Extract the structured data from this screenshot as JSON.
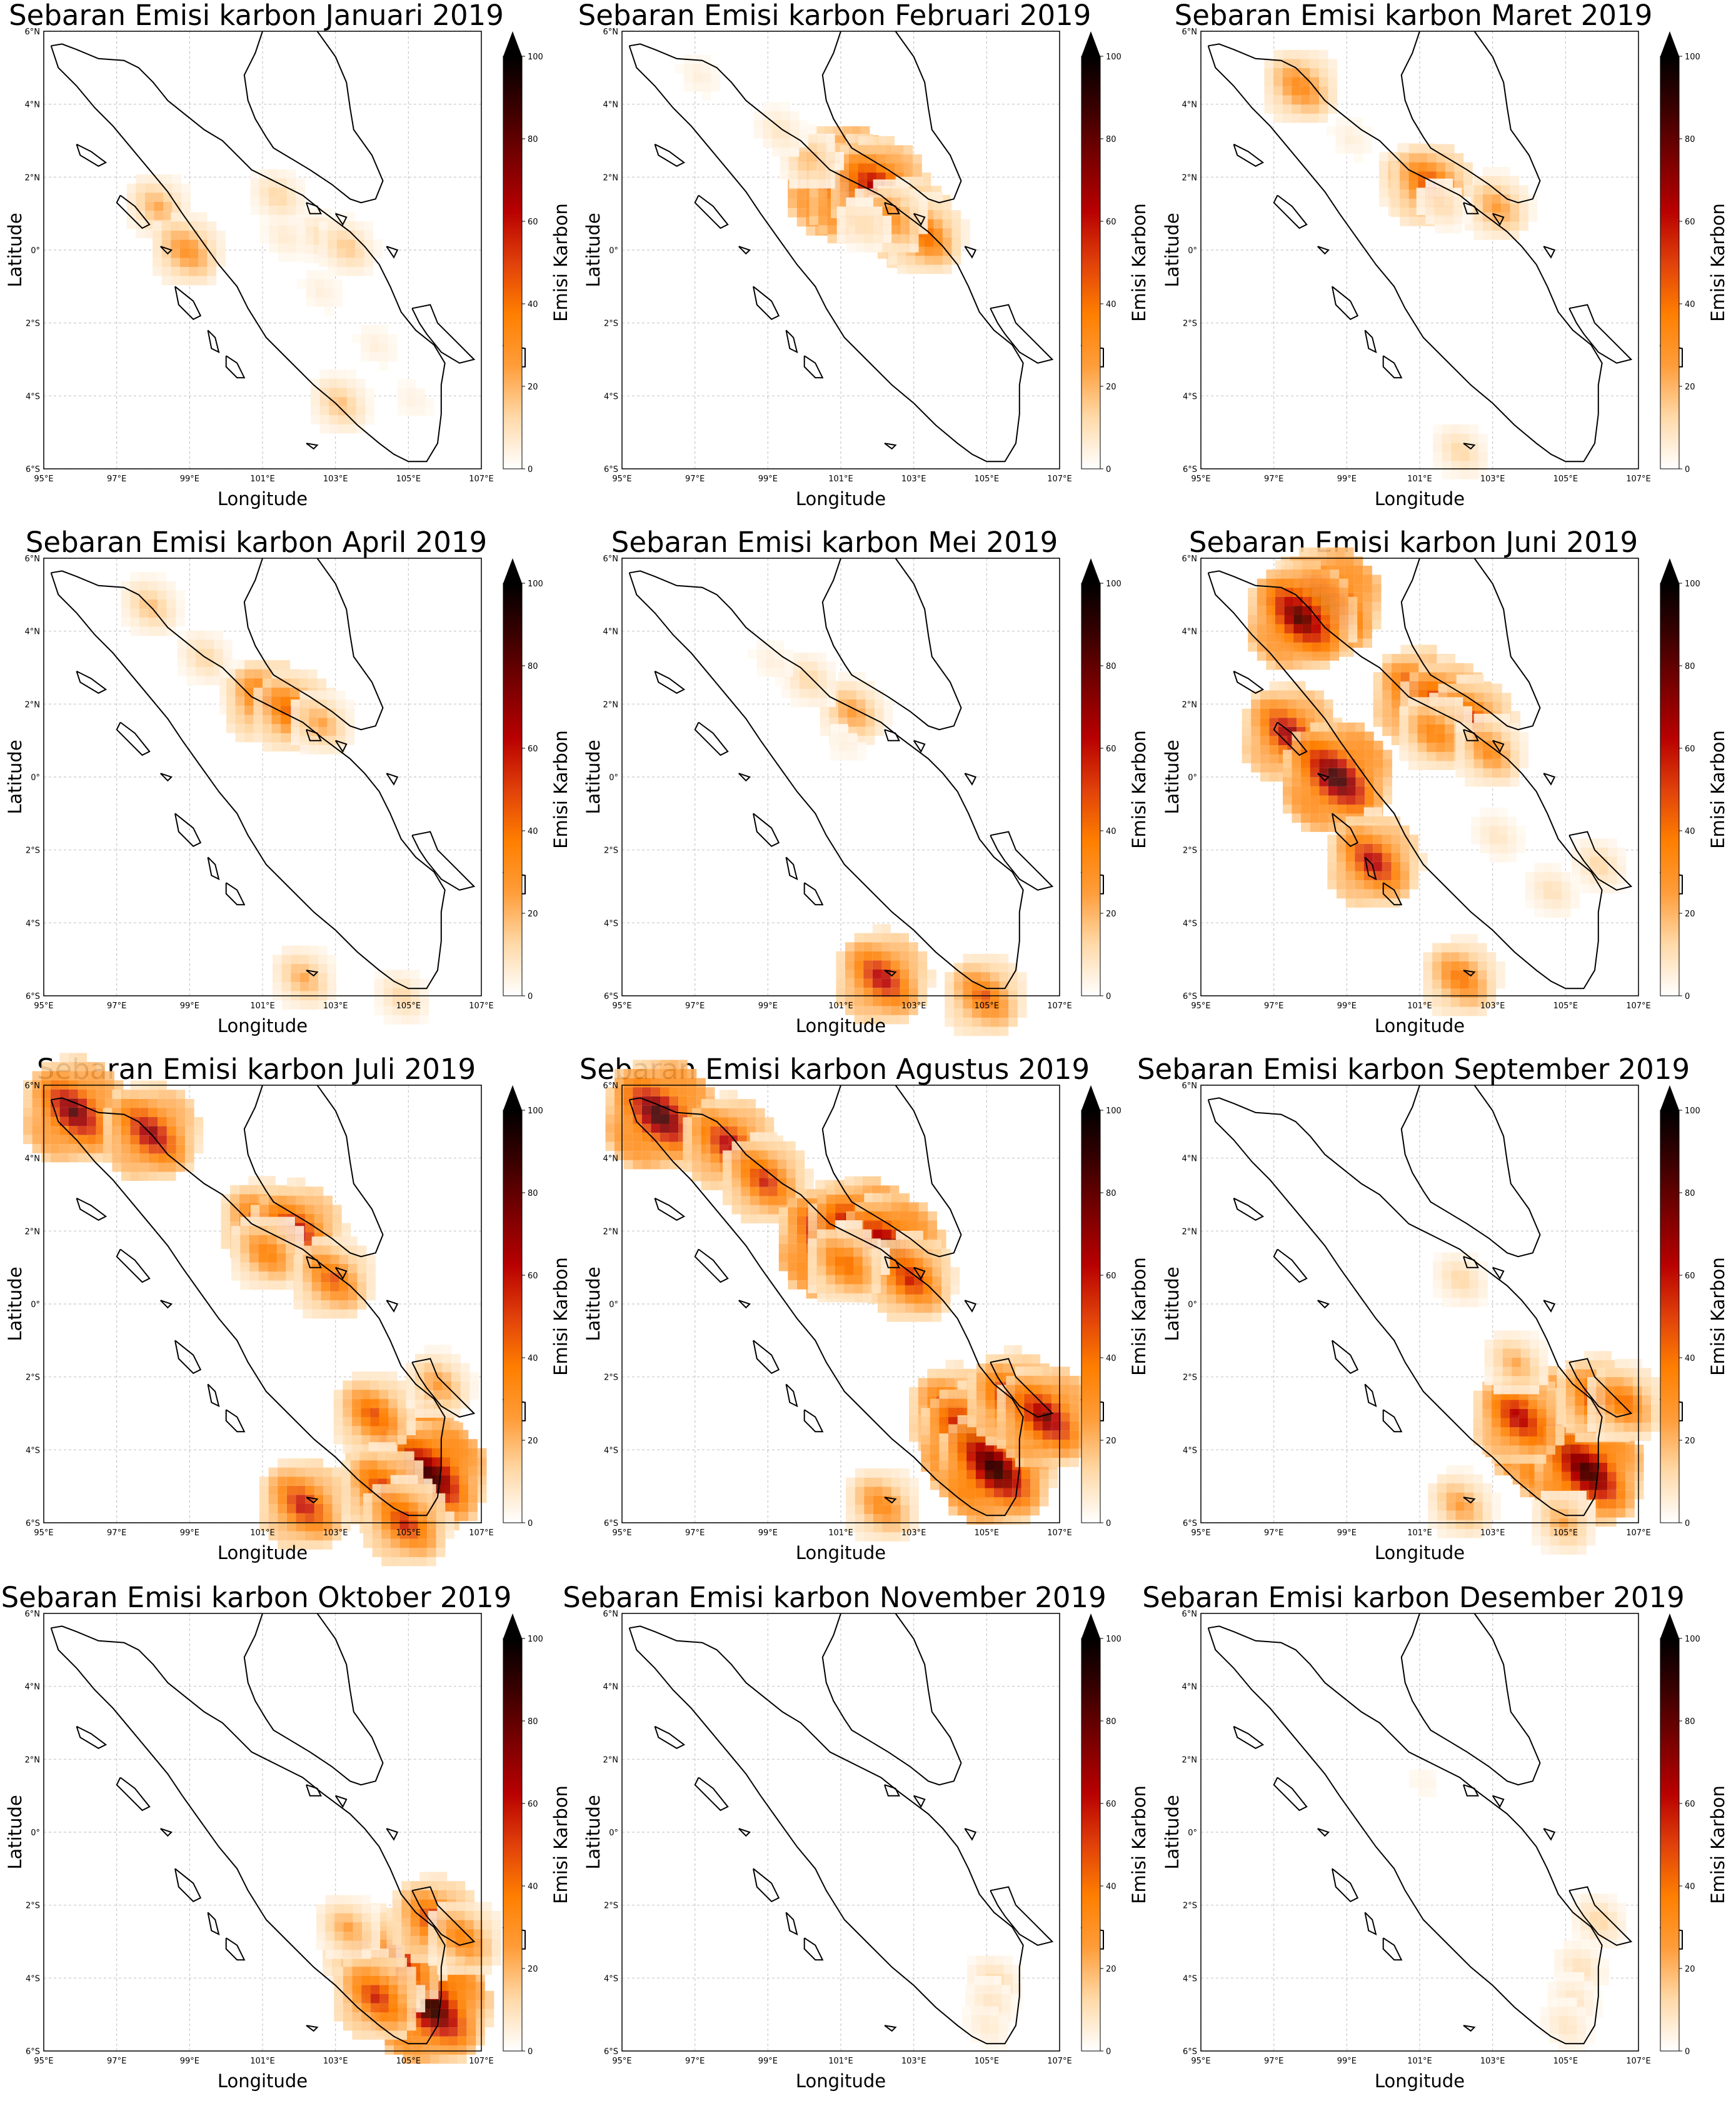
{
  "figure": {
    "colorbar_label": "Emisi Karbon",
    "xlabel": "Longitude",
    "ylabel": "Latitude",
    "colorbar_ticks": [
      "0",
      "20",
      "40",
      "60",
      "80",
      "100"
    ],
    "lon_ticks": [
      "95°E",
      "97°E",
      "99°E",
      "101°E",
      "103°E",
      "105°E",
      "107°E"
    ],
    "lat_ticks": [
      "6°N",
      "4°N",
      "2°N",
      "0°",
      "2°S",
      "4°S",
      "6°S"
    ],
    "colormap": [
      "#ffffff",
      "#ffd9a8",
      "#ff9d3a",
      "#ff7f00",
      "#e0400a",
      "#b80000",
      "#7a0000",
      "#3a0000",
      "#000000"
    ]
  },
  "chart_data": [
    {
      "type": "heatmap",
      "title": "Sebaran Emisi karbon Januari 2019",
      "xlabel": "Longitude",
      "ylabel": "Latitude",
      "colorbar_label": "Emisi Karbon",
      "value_range": [
        0,
        100
      ],
      "xlim": [
        "95°E",
        "107°E"
      ],
      "ylim": [
        "6°S",
        "6°N"
      ],
      "hotspots": [
        {
          "lon": 98.0,
          "lat": 1.3,
          "value": 25
        },
        {
          "lon": 98.8,
          "lat": 0.1,
          "value": 35
        },
        {
          "lon": 101.3,
          "lat": 1.6,
          "value": 15
        },
        {
          "lon": 102.5,
          "lat": 0.5,
          "value": 12
        },
        {
          "lon": 103.2,
          "lat": 0.2,
          "value": 18
        },
        {
          "lon": 101.5,
          "lat": 0.5,
          "value": 8
        },
        {
          "lon": 102.5,
          "lat": -1.0,
          "value": 6
        },
        {
          "lon": 104.0,
          "lat": -2.5,
          "value": 6
        },
        {
          "lon": 103.0,
          "lat": -4.1,
          "value": 20
        },
        {
          "lon": 105.0,
          "lat": -4.0,
          "value": 5
        }
      ]
    },
    {
      "type": "heatmap",
      "title": "Sebaran Emisi karbon Februari 2019",
      "xlabel": "Longitude",
      "ylabel": "Latitude",
      "colorbar_label": "Emisi Karbon",
      "value_range": [
        0,
        100
      ],
      "xlim": [
        "95°E",
        "107°E"
      ],
      "ylim": [
        "6°S",
        "6°N"
      ],
      "hotspots": [
        {
          "lon": 100.9,
          "lat": 2.0,
          "value": 95
        },
        {
          "lon": 101.4,
          "lat": 1.7,
          "value": 85
        },
        {
          "lon": 101.9,
          "lat": 1.8,
          "value": 75
        },
        {
          "lon": 102.8,
          "lat": 0.8,
          "value": 60
        },
        {
          "lon": 103.2,
          "lat": 0.5,
          "value": 45
        },
        {
          "lon": 102.2,
          "lat": 1.0,
          "value": 35
        },
        {
          "lon": 100.0,
          "lat": 2.6,
          "value": 18
        },
        {
          "lon": 99.2,
          "lat": 3.4,
          "value": 10
        },
        {
          "lon": 101.5,
          "lat": 0.8,
          "value": 12
        },
        {
          "lon": 97.0,
          "lat": 4.9,
          "value": 6
        }
      ]
    },
    {
      "type": "heatmap",
      "title": "Sebaran Emisi karbon Maret 2019",
      "xlabel": "Longitude",
      "ylabel": "Latitude",
      "colorbar_label": "Emisi Karbon",
      "value_range": [
        0,
        100
      ],
      "xlim": [
        "95°E",
        "107°E"
      ],
      "ylim": [
        "6°S",
        "6°N"
      ],
      "hotspots": [
        {
          "lon": 97.6,
          "lat": 4.6,
          "value": 40
        },
        {
          "lon": 100.7,
          "lat": 2.0,
          "value": 35
        },
        {
          "lon": 101.2,
          "lat": 1.9,
          "value": 55
        },
        {
          "lon": 103.0,
          "lat": 1.3,
          "value": 30
        },
        {
          "lon": 101.5,
          "lat": 1.3,
          "value": 10
        },
        {
          "lon": 102.0,
          "lat": -5.4,
          "value": 15
        },
        {
          "lon": 99.0,
          "lat": 3.2,
          "value": 6
        }
      ]
    },
    {
      "type": "heatmap",
      "title": "Sebaran Emisi karbon April 2019",
      "xlabel": "Longitude",
      "ylabel": "Latitude",
      "colorbar_label": "Emisi Karbon",
      "value_range": [
        0,
        100
      ],
      "xlim": [
        "95°E",
        "107°E"
      ],
      "ylim": [
        "6°S",
        "6°N"
      ],
      "hotspots": [
        {
          "lon": 97.8,
          "lat": 4.8,
          "value": 20
        },
        {
          "lon": 99.3,
          "lat": 3.4,
          "value": 15
        },
        {
          "lon": 100.5,
          "lat": 2.4,
          "value": 20
        },
        {
          "lon": 101.0,
          "lat": 2.2,
          "value": 55
        },
        {
          "lon": 101.7,
          "lat": 1.9,
          "value": 50
        },
        {
          "lon": 102.5,
          "lat": 1.6,
          "value": 25
        },
        {
          "lon": 102.0,
          "lat": -5.4,
          "value": 25
        },
        {
          "lon": 104.7,
          "lat": -5.9,
          "value": 15
        }
      ]
    },
    {
      "type": "heatmap",
      "title": "Sebaran Emisi karbon Mei 2019",
      "xlabel": "Longitude",
      "ylabel": "Latitude",
      "colorbar_label": "Emisi Karbon",
      "value_range": [
        0,
        100
      ],
      "xlim": [
        "95°E",
        "107°E"
      ],
      "ylim": [
        "6°S",
        "6°N"
      ],
      "hotspots": [
        {
          "lon": 101.2,
          "lat": 1.9,
          "value": 30
        },
        {
          "lon": 100.0,
          "lat": 2.8,
          "value": 15
        },
        {
          "lon": 102.0,
          "lat": -5.4,
          "value": 70
        },
        {
          "lon": 104.8,
          "lat": -5.9,
          "value": 50
        },
        {
          "lon": 99.0,
          "lat": 3.3,
          "value": 6
        },
        {
          "lon": 101.0,
          "lat": 1.0,
          "value": 5
        }
      ]
    },
    {
      "type": "heatmap",
      "title": "Sebaran Emisi karbon Juni 2019",
      "xlabel": "Longitude",
      "ylabel": "Latitude",
      "colorbar_label": "Emisi Karbon",
      "value_range": [
        0,
        100
      ],
      "xlim": [
        "95°E",
        "107°E"
      ],
      "ylim": [
        "6°S",
        "6°N"
      ],
      "hotspots": [
        {
          "lon": 98.3,
          "lat": 4.9,
          "value": 95
        },
        {
          "lon": 97.6,
          "lat": 4.5,
          "value": 90
        },
        {
          "lon": 100.9,
          "lat": 2.3,
          "value": 75
        },
        {
          "lon": 101.6,
          "lat": 2.0,
          "value": 70
        },
        {
          "lon": 102.3,
          "lat": 1.6,
          "value": 60
        },
        {
          "lon": 101.3,
          "lat": 1.3,
          "value": 40
        },
        {
          "lon": 102.8,
          "lat": 0.8,
          "value": 35
        },
        {
          "lon": 97.3,
          "lat": 1.3,
          "value": 75
        },
        {
          "lon": 98.6,
          "lat": 0.1,
          "value": 95
        },
        {
          "lon": 99.6,
          "lat": -2.2,
          "value": 70
        },
        {
          "lon": 102.0,
          "lat": -5.4,
          "value": 45
        },
        {
          "lon": 103.0,
          "lat": -1.5,
          "value": 10
        },
        {
          "lon": 104.5,
          "lat": -3.0,
          "value": 12
        },
        {
          "lon": 105.8,
          "lat": -2.3,
          "value": 15
        }
      ]
    },
    {
      "type": "heatmap",
      "title": "Sebaran Emisi karbon Juli 2019",
      "xlabel": "Longitude",
      "ylabel": "Latitude",
      "colorbar_label": "Emisi Karbon",
      "value_range": [
        0,
        100
      ],
      "xlim": [
        "95°E",
        "107°E"
      ],
      "ylim": [
        "6°S",
        "6°N"
      ],
      "hotspots": [
        {
          "lon": 95.7,
          "lat": 5.4,
          "value": 85
        },
        {
          "lon": 97.8,
          "lat": 4.8,
          "value": 75
        },
        {
          "lon": 100.9,
          "lat": 2.3,
          "value": 60
        },
        {
          "lon": 101.8,
          "lat": 2.1,
          "value": 70
        },
        {
          "lon": 101.0,
          "lat": 1.5,
          "value": 40
        },
        {
          "lon": 102.8,
          "lat": 0.8,
          "value": 50
        },
        {
          "lon": 104.4,
          "lat": -3.5,
          "value": 70
        },
        {
          "lon": 104.9,
          "lat": -4.1,
          "value": 100
        },
        {
          "lon": 105.5,
          "lat": -4.6,
          "value": 95
        },
        {
          "lon": 103.9,
          "lat": -2.9,
          "value": 50
        },
        {
          "lon": 104.2,
          "lat": -5.0,
          "value": 60
        },
        {
          "lon": 105.7,
          "lat": -2.1,
          "value": 30
        },
        {
          "lon": 102.0,
          "lat": -5.4,
          "value": 65
        },
        {
          "lon": 104.8,
          "lat": -5.9,
          "value": 60
        }
      ]
    },
    {
      "type": "heatmap",
      "title": "Sebaran Emisi karbon Agustus 2019",
      "xlabel": "Longitude",
      "ylabel": "Latitude",
      "colorbar_label": "Emisi Karbon",
      "value_range": [
        0,
        100
      ],
      "xlim": [
        "95°E",
        "107°E"
      ],
      "ylim": [
        "6°S",
        "6°N"
      ],
      "hotspots": [
        {
          "lon": 95.9,
          "lat": 5.3,
          "value": 95
        },
        {
          "lon": 97.8,
          "lat": 4.5,
          "value": 70
        },
        {
          "lon": 98.8,
          "lat": 3.5,
          "value": 60
        },
        {
          "lon": 100.7,
          "lat": 1.8,
          "value": 100
        },
        {
          "lon": 101.5,
          "lat": 1.9,
          "value": 100
        },
        {
          "lon": 102.2,
          "lat": 1.6,
          "value": 90
        },
        {
          "lon": 102.8,
          "lat": 0.8,
          "value": 60
        },
        {
          "lon": 101.0,
          "lat": 1.2,
          "value": 45
        },
        {
          "lon": 104.0,
          "lat": -2.9,
          "value": 70
        },
        {
          "lon": 104.6,
          "lat": -3.7,
          "value": 100
        },
        {
          "lon": 105.1,
          "lat": -4.4,
          "value": 100
        },
        {
          "lon": 105.6,
          "lat": -2.5,
          "value": 70
        },
        {
          "lon": 106.5,
          "lat": -3.0,
          "value": 80
        },
        {
          "lon": 102.0,
          "lat": -5.4,
          "value": 40
        }
      ]
    },
    {
      "type": "heatmap",
      "title": "Sebaran Emisi karbon September 2019",
      "xlabel": "Longitude",
      "ylabel": "Latitude",
      "colorbar_label": "Emisi Karbon",
      "value_range": [
        0,
        100
      ],
      "xlim": [
        "95°E",
        "107°E"
      ],
      "ylim": [
        "6°S",
        "6°N"
      ],
      "hotspots": [
        {
          "lon": 104.2,
          "lat": -3.3,
          "value": 100
        },
        {
          "lon": 104.9,
          "lat": -3.9,
          "value": 100
        },
        {
          "lon": 105.5,
          "lat": -4.5,
          "value": 95
        },
        {
          "lon": 103.6,
          "lat": -3.0,
          "value": 70
        },
        {
          "lon": 105.8,
          "lat": -2.5,
          "value": 60
        },
        {
          "lon": 106.5,
          "lat": -2.6,
          "value": 45
        },
        {
          "lon": 103.5,
          "lat": -1.5,
          "value": 25
        },
        {
          "lon": 102.0,
          "lat": 0.8,
          "value": 15
        },
        {
          "lon": 102.0,
          "lat": -5.4,
          "value": 30
        },
        {
          "lon": 104.8,
          "lat": -5.9,
          "value": 25
        }
      ]
    },
    {
      "type": "heatmap",
      "title": "Sebaran Emisi karbon Oktober 2019",
      "xlabel": "Longitude",
      "ylabel": "Latitude",
      "colorbar_label": "Emisi Karbon",
      "value_range": [
        0,
        100
      ],
      "xlim": [
        "95°E",
        "107°E"
      ],
      "ylim": [
        "6°S",
        "6°N"
      ],
      "hotspots": [
        {
          "lon": 105.2,
          "lat": -3.7,
          "value": 100
        },
        {
          "lon": 105.5,
          "lat": -4.7,
          "value": 100
        },
        {
          "lon": 104.5,
          "lat": -3.4,
          "value": 75
        },
        {
          "lon": 103.6,
          "lat": -3.0,
          "value": 50
        },
        {
          "lon": 105.6,
          "lat": -2.3,
          "value": 60
        },
        {
          "lon": 106.4,
          "lat": -2.8,
          "value": 40
        },
        {
          "lon": 104.0,
          "lat": -4.4,
          "value": 60
        },
        {
          "lon": 103.2,
          "lat": -2.5,
          "value": 25
        }
      ]
    },
    {
      "type": "heatmap",
      "title": "Sebaran Emisi karbon November 2019",
      "xlabel": "Longitude",
      "ylabel": "Latitude",
      "colorbar_label": "Emisi Karbon",
      "value_range": [
        0,
        100
      ],
      "xlim": [
        "95°E",
        "107°E"
      ],
      "ylim": [
        "6°S",
        "6°N"
      ],
      "hotspots": [
        {
          "lon": 105.1,
          "lat": -4.0,
          "value": 15
        },
        {
          "lon": 105.0,
          "lat": -4.6,
          "value": 10
        },
        {
          "lon": 104.9,
          "lat": -5.2,
          "value": 8
        }
      ]
    },
    {
      "type": "heatmap",
      "title": "Sebaran Emisi karbon Desember 2019",
      "xlabel": "Longitude",
      "ylabel": "Latitude",
      "colorbar_label": "Emisi Karbon",
      "value_range": [
        0,
        100
      ],
      "xlim": [
        "95°E",
        "107°E"
      ],
      "ylim": [
        "6°S",
        "6°N"
      ],
      "hotspots": [
        {
          "lon": 105.8,
          "lat": -2.3,
          "value": 15
        },
        {
          "lon": 105.3,
          "lat": -3.6,
          "value": 12
        },
        {
          "lon": 105.1,
          "lat": -4.5,
          "value": 10
        },
        {
          "lon": 104.9,
          "lat": -5.2,
          "value": 10
        },
        {
          "lon": 101.0,
          "lat": 1.5,
          "value": 4
        }
      ]
    }
  ]
}
